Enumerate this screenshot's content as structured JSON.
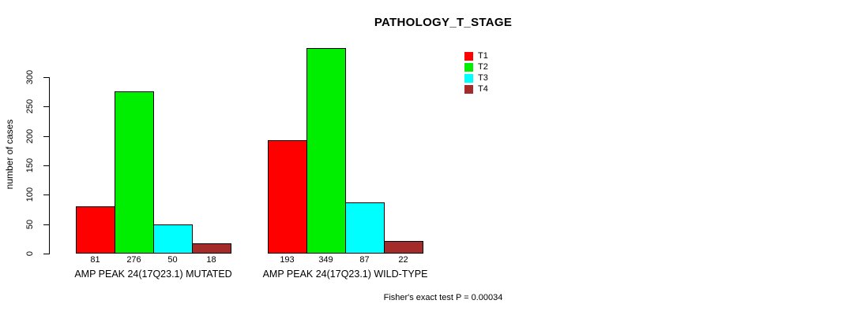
{
  "chart_data": {
    "type": "bar",
    "title": "PATHOLOGY_T_STAGE",
    "xlabel": "",
    "ylabel": "number of cases",
    "ylim": [
      0,
      350
    ],
    "yticks": [
      0,
      50,
      100,
      150,
      200,
      250,
      300
    ],
    "grid": false,
    "legend_position": "top-right",
    "bar_value_labels_shown": true,
    "categories": [
      "AMP PEAK 24(17Q23.1) MUTATED",
      "AMP PEAK 24(17Q23.1) WILD-TYPE"
    ],
    "series": [
      {
        "name": "T1",
        "color": "#ff0000",
        "values": [
          81,
          193
        ]
      },
      {
        "name": "T2",
        "color": "#00ee00",
        "values": [
          276,
          349
        ]
      },
      {
        "name": "T3",
        "color": "#00ffff",
        "values": [
          50,
          87
        ]
      },
      {
        "name": "T4",
        "color": "#a52a2a",
        "values": [
          18,
          22
        ]
      }
    ],
    "annotation": "Fisher's exact test P = 0.00034"
  }
}
